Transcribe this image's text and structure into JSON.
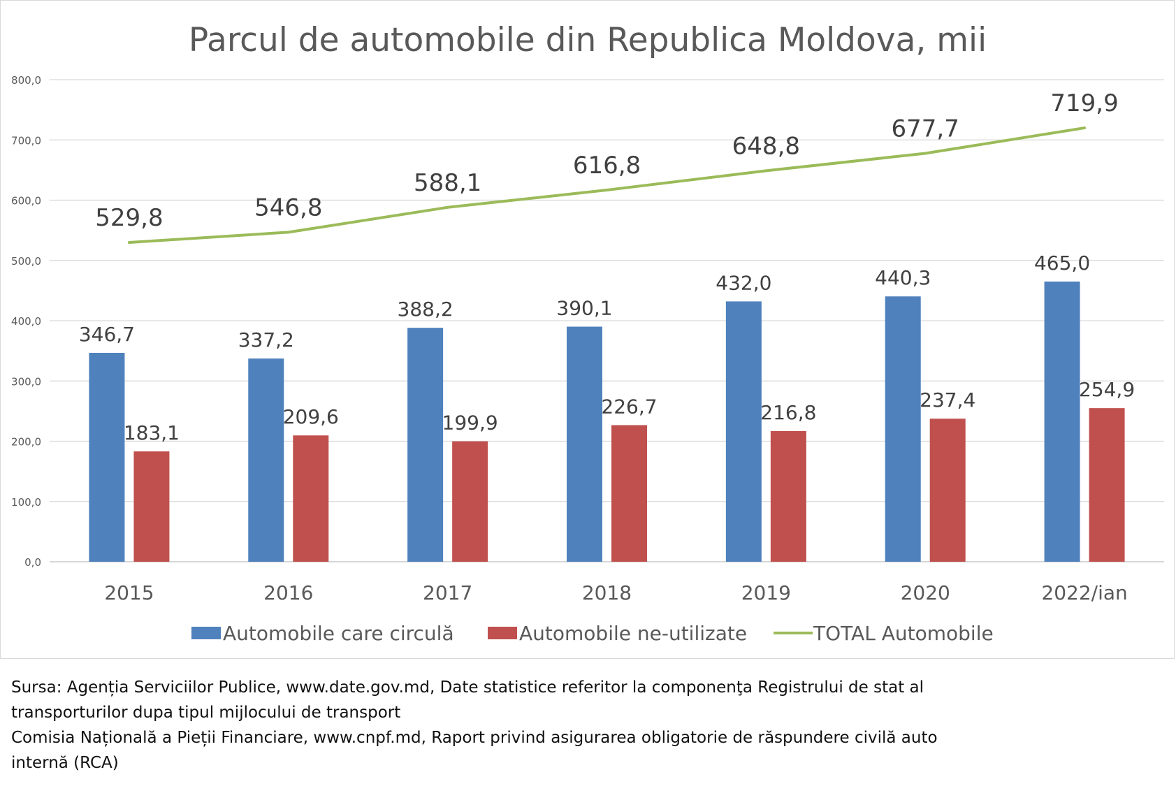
{
  "chart_data": {
    "type": "bar",
    "title": "Parcul de automobile din Republica Moldova, mii",
    "categories": [
      "2015",
      "2016",
      "2017",
      "2018",
      "2019",
      "2020",
      "2022/ian"
    ],
    "series": [
      {
        "name": "Automobile care circulă",
        "type": "bar",
        "color": "#4f81bd",
        "values": [
          346.7,
          337.2,
          388.2,
          390.1,
          432.0,
          440.3,
          465.0
        ],
        "labels": [
          "346,7",
          "337,2",
          "388,2",
          "390,1",
          "432,0",
          "440,3",
          "465,0"
        ]
      },
      {
        "name": "Automobile ne-utilizate",
        "type": "bar",
        "color": "#c0504d",
        "values": [
          183.1,
          209.6,
          199.9,
          226.7,
          216.8,
          237.4,
          254.9
        ],
        "labels": [
          "183,1",
          "209,6",
          "199,9",
          "226,7",
          "216,8",
          "237,4",
          "254,9"
        ]
      },
      {
        "name": "TOTAL Automobile",
        "type": "line",
        "color": "#9bbb59",
        "values": [
          529.8,
          546.8,
          588.1,
          616.8,
          648.8,
          677.7,
          719.9
        ],
        "labels": [
          "529,8",
          "546,8",
          "588,1",
          "616,8",
          "648,8",
          "677,7",
          "719,9"
        ]
      }
    ],
    "ylim": [
      0,
      800
    ],
    "yticks": [
      0,
      100,
      200,
      300,
      400,
      500,
      600,
      700,
      800
    ],
    "ytick_labels": [
      "0,0",
      "100,0",
      "200,0",
      "300,0",
      "400,0",
      "500,0",
      "600,0",
      "700,0",
      "800,0"
    ],
    "grid": true,
    "legend": "bottom"
  },
  "source": {
    "lines": [
      "Sursa: Agenția Serviciilor Publice, www.date.gov.md,  Date statistice referitor la componenţa Registrului de stat al",
      "transporturilor dupa tipul mijlocului de transport",
      "Comisia Națională a Pieții Financiare, www.cnpf.md, Raport privind asigurarea obligatorie de răspundere civilă auto",
      "internă (RCA)"
    ]
  }
}
